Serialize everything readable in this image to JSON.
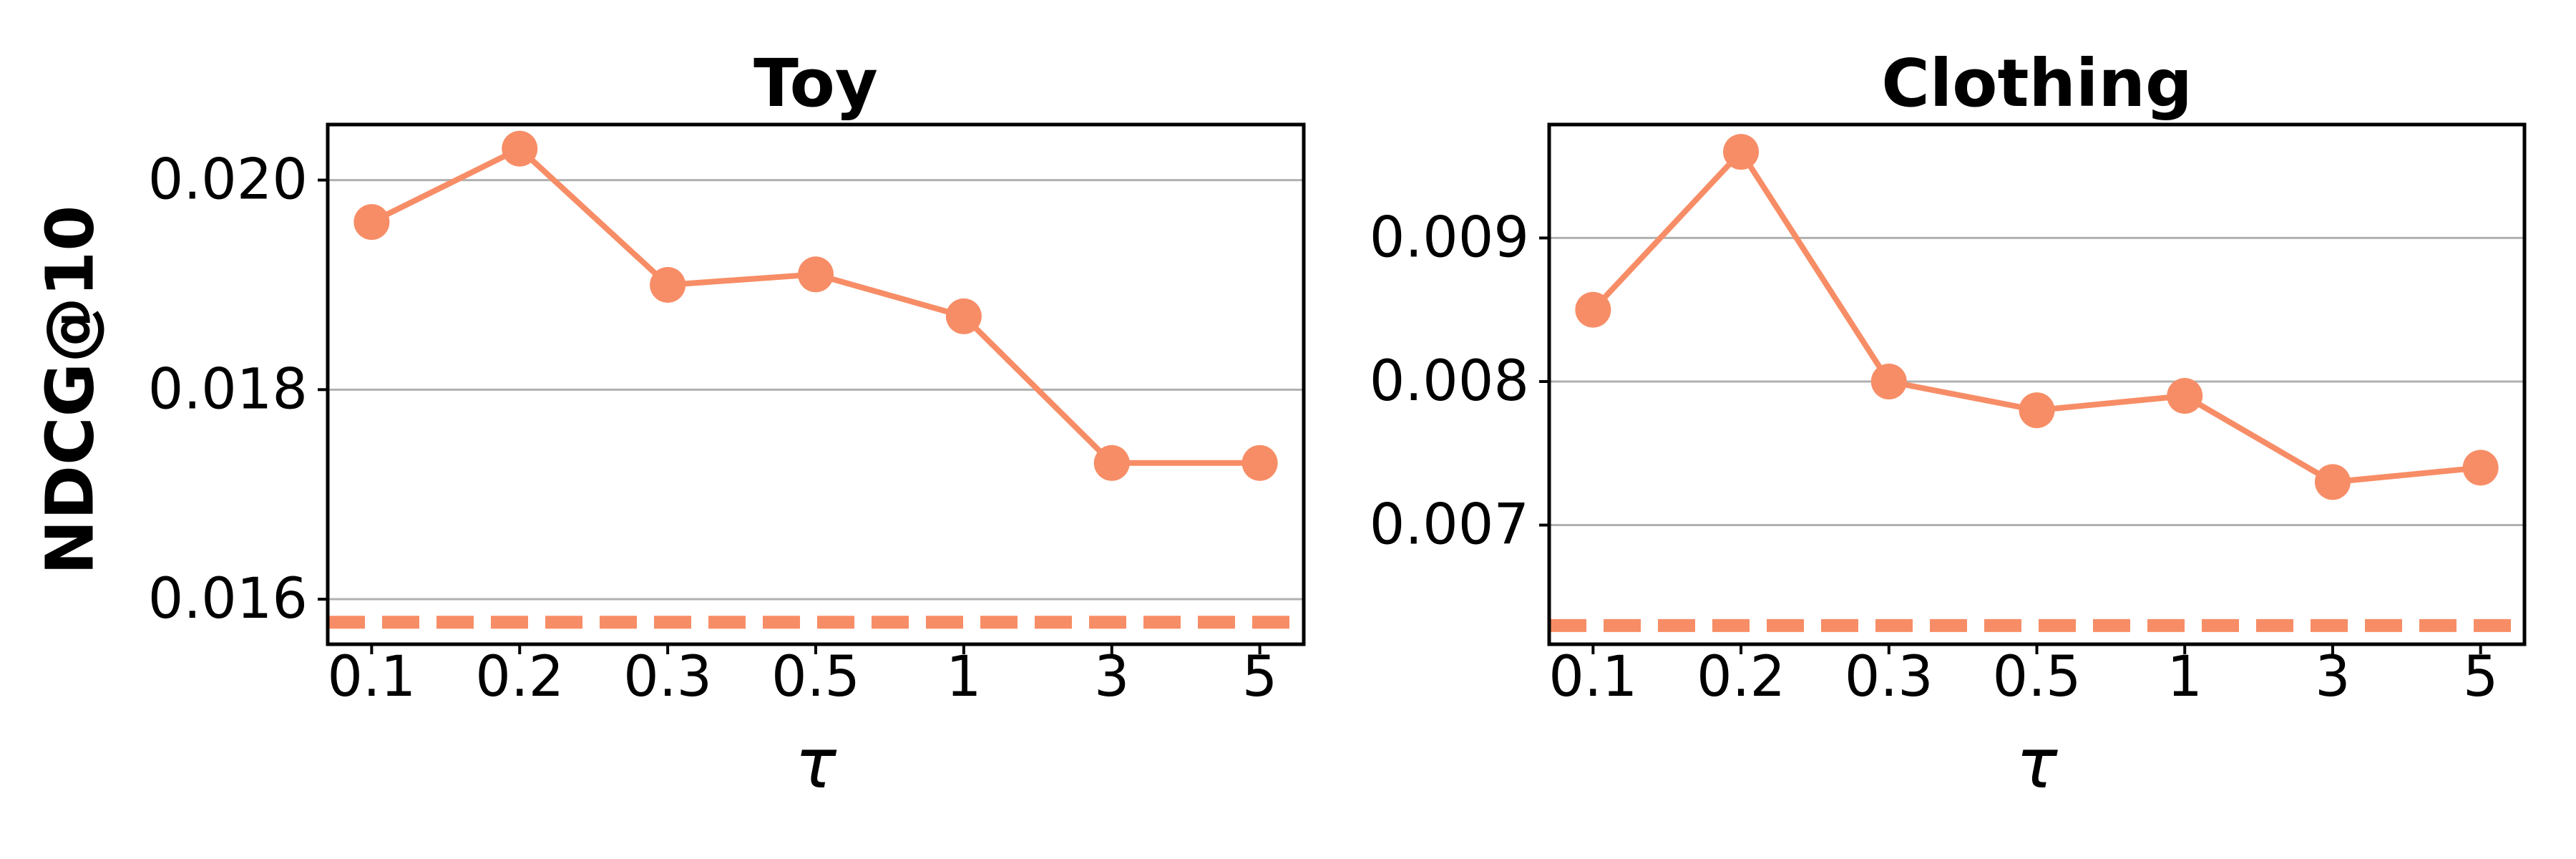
{
  "figure": {
    "ylabel": "NDCG@10",
    "xlabel": "τ"
  },
  "style": {
    "series_color": "#f78d66",
    "grid_color": "#b0b0b0",
    "axis_color": "#000000"
  },
  "chart_data": [
    {
      "type": "line",
      "title": "Toy",
      "xlabel": "τ",
      "ylabel": "NDCG@10",
      "x": [
        "0.1",
        "0.2",
        "0.3",
        "0.5",
        "1",
        "3",
        "5"
      ],
      "values": [
        0.0196,
        0.0203,
        0.019,
        0.0191,
        0.0187,
        0.0173,
        0.0173
      ],
      "baseline": 0.01578,
      "ylim": [
        0.01557,
        0.02053
      ],
      "yticks": [
        0.016,
        0.018,
        0.02
      ],
      "ytick_labels": [
        "0.016",
        "0.018",
        "0.020"
      ],
      "grid": "horizontal"
    },
    {
      "type": "line",
      "title": "Clothing",
      "xlabel": "τ",
      "ylabel": "",
      "x": [
        "0.1",
        "0.2",
        "0.3",
        "0.5",
        "1",
        "3",
        "5"
      ],
      "values": [
        0.0085,
        0.0096,
        0.008,
        0.0078,
        0.0079,
        0.0073,
        0.0074
      ],
      "baseline": 0.0063,
      "ylim": [
        0.00617,
        0.00979
      ],
      "yticks": [
        0.007,
        0.008,
        0.009
      ],
      "ytick_labels": [
        "0.007",
        "0.008",
        "0.009"
      ],
      "grid": "horizontal"
    }
  ]
}
